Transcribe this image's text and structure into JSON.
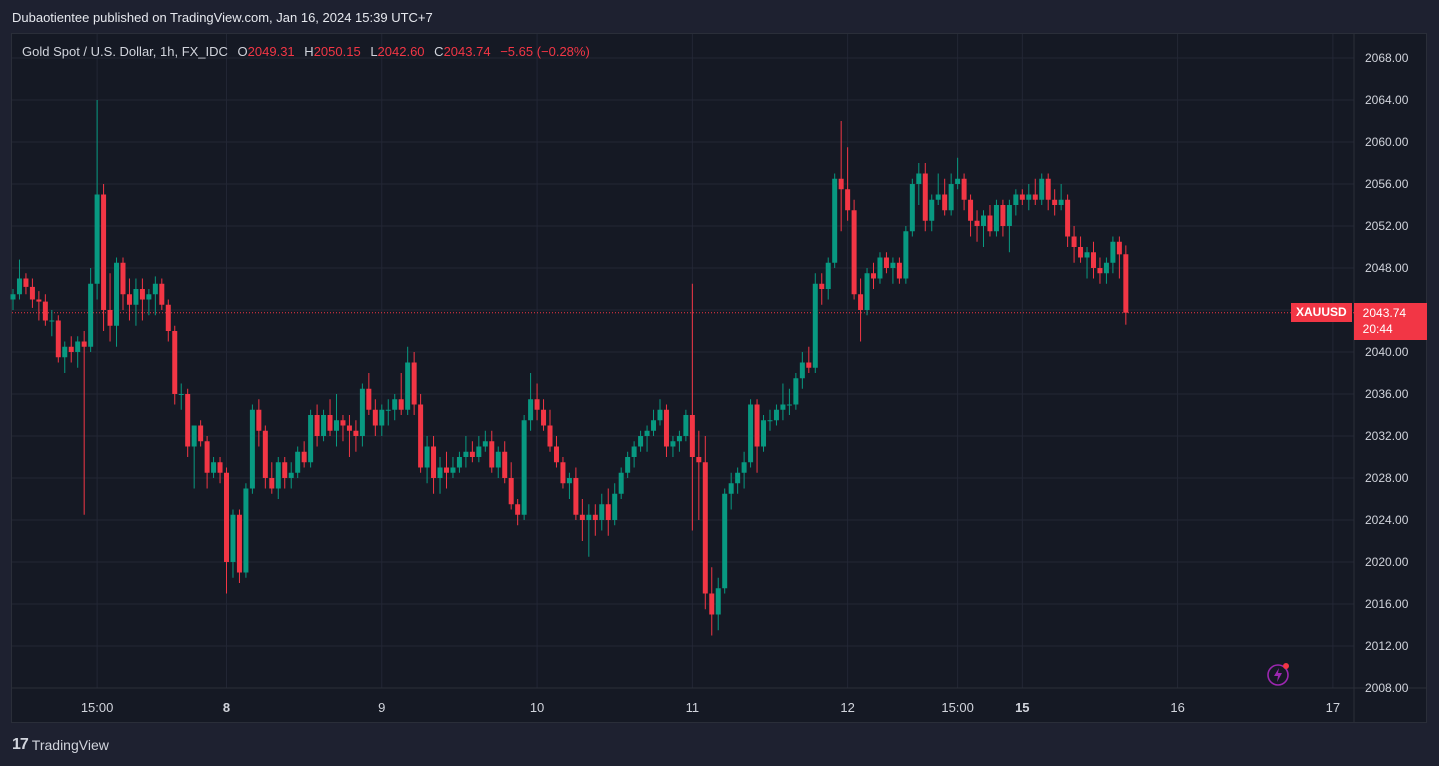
{
  "header": {
    "publisher_line": "Dubaotientee published on TradingView.com, Jan 16, 2024 15:39 UTC+7"
  },
  "legend": {
    "symbol_desc": "Gold Spot / U.S. Dollar, 1h, FX_IDC",
    "o_label": "O",
    "o_value": "2049.31",
    "h_label": "H",
    "h_value": "2050.15",
    "l_label": "L",
    "l_value": "2042.60",
    "c_label": "C",
    "c_value": "2043.74",
    "change": "−5.65 (−0.28%)"
  },
  "price_tag": {
    "symbol": "XAUUSD",
    "price": "2043.74",
    "countdown": "20:44"
  },
  "branding": {
    "logo_mark": "17",
    "name": "TradingView"
  },
  "colors": {
    "up": "#089981",
    "down": "#f23645",
    "background": "#151924",
    "grid": "#232735",
    "text": "#d1d4dc",
    "flash_icon": "#9c27b0"
  },
  "icons": {
    "bottom_right": "flash-icon"
  },
  "chart_data": {
    "type": "candlestick",
    "symbol": "XAUUSD",
    "interval": "1h",
    "last_price": 2043.74,
    "ylim": [
      2008,
      2070
    ],
    "y_ticks": [
      "2068.00",
      "2064.00",
      "2060.00",
      "2056.00",
      "2052.00",
      "2048.00",
      "2044.00",
      "2040.00",
      "2036.00",
      "2032.00",
      "2028.00",
      "2024.00",
      "2020.00",
      "2016.00",
      "2012.00",
      "2008.00"
    ],
    "x_ticks": [
      {
        "label": "15:00",
        "idx": 13,
        "bold": false
      },
      {
        "label": "8",
        "idx": 33,
        "bold": true
      },
      {
        "label": "9",
        "idx": 57,
        "bold": false
      },
      {
        "label": "10",
        "idx": 81,
        "bold": false
      },
      {
        "label": "11",
        "idx": 105,
        "bold": false
      },
      {
        "label": "12",
        "idx": 129,
        "bold": false
      },
      {
        "label": "15:00",
        "idx": 146,
        "bold": false
      },
      {
        "label": "15",
        "idx": 156,
        "bold": true
      },
      {
        "label": "16",
        "idx": 180,
        "bold": false
      },
      {
        "label": "17",
        "idx": 204,
        "bold": false
      }
    ],
    "candles": [
      [
        2045.0,
        2046.0,
        2044.0,
        2045.5
      ],
      [
        2045.5,
        2048.8,
        2045.0,
        2047.0
      ],
      [
        2047.0,
        2047.5,
        2045.5,
        2046.2
      ],
      [
        2046.2,
        2047.0,
        2044.2,
        2045.0
      ],
      [
        2045.0,
        2045.8,
        2043.0,
        2044.8
      ],
      [
        2044.8,
        2045.5,
        2042.5,
        2043.0
      ],
      [
        2043.0,
        2044.0,
        2041.5,
        2043.0
      ],
      [
        2043.0,
        2043.5,
        2039.0,
        2039.5
      ],
      [
        2039.5,
        2041.0,
        2038.0,
        2040.5
      ],
      [
        2040.5,
        2041.5,
        2039.0,
        2040.0
      ],
      [
        2040.0,
        2041.5,
        2038.5,
        2041.0
      ],
      [
        2041.0,
        2042.0,
        2024.5,
        2040.5
      ],
      [
        2040.5,
        2048.0,
        2040.0,
        2046.5
      ],
      [
        2046.5,
        2064.0,
        2045.0,
        2055.0
      ],
      [
        2055.0,
        2056.0,
        2042.0,
        2044.0
      ],
      [
        2044.0,
        2047.5,
        2041.0,
        2042.5
      ],
      [
        2042.5,
        2049.0,
        2040.5,
        2048.5
      ],
      [
        2048.5,
        2049.0,
        2044.0,
        2045.5
      ],
      [
        2045.5,
        2047.0,
        2043.0,
        2044.5
      ],
      [
        2044.5,
        2047.0,
        2042.5,
        2046.0
      ],
      [
        2046.0,
        2047.0,
        2043.0,
        2045.0
      ],
      [
        2045.0,
        2046.0,
        2043.5,
        2045.5
      ],
      [
        2045.5,
        2047.2,
        2043.5,
        2046.5
      ],
      [
        2046.5,
        2047.0,
        2044.0,
        2044.5
      ],
      [
        2044.5,
        2045.0,
        2041.0,
        2042.0
      ],
      [
        2042.0,
        2042.5,
        2035.0,
        2036.0
      ],
      [
        2036.0,
        2037.0,
        2034.5,
        2036.0
      ],
      [
        2036.0,
        2036.5,
        2030.0,
        2031.0
      ],
      [
        2031.0,
        2033.0,
        2027.0,
        2033.0
      ],
      [
        2033.0,
        2033.5,
        2031.0,
        2031.5
      ],
      [
        2031.5,
        2032.0,
        2027.0,
        2028.5
      ],
      [
        2028.5,
        2030.0,
        2028.0,
        2029.5
      ],
      [
        2029.5,
        2030.0,
        2027.5,
        2028.5
      ],
      [
        2028.5,
        2029.0,
        2017.0,
        2020.0
      ],
      [
        2020.0,
        2025.0,
        2018.5,
        2024.5
      ],
      [
        2024.5,
        2025.0,
        2018.0,
        2019.0
      ],
      [
        2019.0,
        2027.5,
        2018.5,
        2027.0
      ],
      [
        2027.0,
        2035.0,
        2026.5,
        2034.5
      ],
      [
        2034.5,
        2035.5,
        2031.0,
        2032.5
      ],
      [
        2032.5,
        2033.0,
        2027.0,
        2028.0
      ],
      [
        2028.0,
        2029.5,
        2026.5,
        2027.0
      ],
      [
        2027.0,
        2030.0,
        2026.0,
        2029.5
      ],
      [
        2029.5,
        2030.0,
        2027.0,
        2028.0
      ],
      [
        2028.0,
        2029.5,
        2027.0,
        2028.5
      ],
      [
        2028.5,
        2031.0,
        2028.0,
        2030.5
      ],
      [
        2030.5,
        2031.5,
        2029.0,
        2029.5
      ],
      [
        2029.5,
        2034.5,
        2029.0,
        2034.0
      ],
      [
        2034.0,
        2035.0,
        2031.0,
        2032.0
      ],
      [
        2032.0,
        2034.5,
        2031.5,
        2034.0
      ],
      [
        2034.0,
        2035.5,
        2032.0,
        2032.5
      ],
      [
        2032.5,
        2036.0,
        2031.0,
        2033.5
      ],
      [
        2033.5,
        2034.0,
        2031.5,
        2033.0
      ],
      [
        2033.0,
        2034.0,
        2030.0,
        2032.5
      ],
      [
        2032.5,
        2033.5,
        2030.5,
        2032.0
      ],
      [
        2032.0,
        2037.0,
        2031.0,
        2036.5
      ],
      [
        2036.5,
        2038.0,
        2034.0,
        2034.5
      ],
      [
        2034.5,
        2035.5,
        2032.0,
        2033.0
      ],
      [
        2033.0,
        2035.0,
        2032.0,
        2034.5
      ],
      [
        2034.5,
        2035.5,
        2033.0,
        2034.5
      ],
      [
        2034.5,
        2036.0,
        2033.5,
        2035.5
      ],
      [
        2035.5,
        2038.0,
        2034.0,
        2034.5
      ],
      [
        2034.5,
        2040.5,
        2034.0,
        2039.0
      ],
      [
        2039.0,
        2040.0,
        2034.0,
        2035.0
      ],
      [
        2035.0,
        2036.0,
        2028.5,
        2029.0
      ],
      [
        2029.0,
        2032.0,
        2027.5,
        2031.0
      ],
      [
        2031.0,
        2032.0,
        2026.5,
        2028.0
      ],
      [
        2028.0,
        2030.0,
        2026.5,
        2029.0
      ],
      [
        2029.0,
        2030.5,
        2027.0,
        2028.5
      ],
      [
        2028.5,
        2030.0,
        2028.0,
        2029.0
      ],
      [
        2029.0,
        2030.5,
        2028.5,
        2030.0
      ],
      [
        2030.0,
        2032.0,
        2029.0,
        2030.5
      ],
      [
        2030.5,
        2031.5,
        2029.5,
        2030.0
      ],
      [
        2030.0,
        2032.0,
        2029.5,
        2031.0
      ],
      [
        2031.0,
        2032.5,
        2030.5,
        2031.5
      ],
      [
        2031.5,
        2032.5,
        2028.5,
        2029.0
      ],
      [
        2029.0,
        2031.0,
        2028.0,
        2030.5
      ],
      [
        2030.5,
        2031.5,
        2027.5,
        2028.0
      ],
      [
        2028.0,
        2029.5,
        2025.0,
        2025.5
      ],
      [
        2025.5,
        2026.0,
        2023.5,
        2024.5
      ],
      [
        2024.5,
        2034.0,
        2024.0,
        2033.5
      ],
      [
        2033.5,
        2038.0,
        2032.5,
        2035.5
      ],
      [
        2035.5,
        2037.0,
        2033.5,
        2034.5
      ],
      [
        2034.5,
        2035.5,
        2032.5,
        2033.0
      ],
      [
        2033.0,
        2034.5,
        2030.5,
        2031.0
      ],
      [
        2031.0,
        2032.0,
        2029.0,
        2029.5
      ],
      [
        2029.5,
        2030.0,
        2027.0,
        2027.5
      ],
      [
        2027.5,
        2028.5,
        2026.0,
        2028.0
      ],
      [
        2028.0,
        2029.0,
        2024.0,
        2024.5
      ],
      [
        2024.5,
        2026.0,
        2022.0,
        2024.0
      ],
      [
        2024.0,
        2025.5,
        2020.5,
        2024.5
      ],
      [
        2024.5,
        2025.5,
        2022.5,
        2024.0
      ],
      [
        2024.0,
        2026.5,
        2023.0,
        2025.5
      ],
      [
        2025.5,
        2027.0,
        2022.5,
        2024.0
      ],
      [
        2024.0,
        2027.5,
        2023.5,
        2026.5
      ],
      [
        2026.5,
        2029.0,
        2026.0,
        2028.5
      ],
      [
        2028.5,
        2030.5,
        2028.0,
        2030.0
      ],
      [
        2030.0,
        2031.5,
        2029.0,
        2031.0
      ],
      [
        2031.0,
        2032.5,
        2030.5,
        2032.0
      ],
      [
        2032.0,
        2033.0,
        2030.5,
        2032.5
      ],
      [
        2032.5,
        2034.5,
        2032.0,
        2033.5
      ],
      [
        2033.5,
        2035.5,
        2033.0,
        2034.5
      ],
      [
        2034.5,
        2035.0,
        2030.0,
        2031.0
      ],
      [
        2031.0,
        2032.0,
        2030.0,
        2031.5
      ],
      [
        2031.5,
        2032.5,
        2030.5,
        2032.0
      ],
      [
        2032.0,
        2034.5,
        2031.5,
        2034.0
      ],
      [
        2034.0,
        2046.5,
        2023.0,
        2030.0
      ],
      [
        2030.0,
        2032.5,
        2024.0,
        2029.5
      ],
      [
        2029.5,
        2032.0,
        2015.5,
        2017.0
      ],
      [
        2017.0,
        2019.5,
        2013.0,
        2015.0
      ],
      [
        2015.0,
        2018.5,
        2013.5,
        2017.5
      ],
      [
        2017.5,
        2027.0,
        2017.0,
        2026.5
      ],
      [
        2026.5,
        2028.5,
        2025.0,
        2027.5
      ],
      [
        2027.5,
        2029.0,
        2026.5,
        2028.5
      ],
      [
        2028.5,
        2030.5,
        2027.0,
        2029.5
      ],
      [
        2029.5,
        2035.5,
        2029.0,
        2035.0
      ],
      [
        2035.0,
        2035.5,
        2028.5,
        2031.0
      ],
      [
        2031.0,
        2034.0,
        2030.5,
        2033.5
      ],
      [
        2033.5,
        2034.5,
        2032.5,
        2033.5
      ],
      [
        2033.5,
        2035.0,
        2033.0,
        2034.5
      ],
      [
        2034.5,
        2037.0,
        2033.5,
        2035.0
      ],
      [
        2035.0,
        2036.5,
        2034.0,
        2035.0
      ],
      [
        2035.0,
        2038.0,
        2034.5,
        2037.5
      ],
      [
        2037.5,
        2040.0,
        2036.5,
        2039.0
      ],
      [
        2039.0,
        2040.5,
        2038.0,
        2038.5
      ],
      [
        2038.5,
        2047.5,
        2038.0,
        2046.5
      ],
      [
        2046.5,
        2047.5,
        2044.5,
        2046.0
      ],
      [
        2046.0,
        2049.0,
        2045.0,
        2048.5
      ],
      [
        2048.5,
        2057.0,
        2048.0,
        2056.5
      ],
      [
        2056.5,
        2062.0,
        2051.5,
        2055.5
      ],
      [
        2055.5,
        2059.5,
        2052.5,
        2053.5
      ],
      [
        2053.5,
        2054.5,
        2045.0,
        2045.5
      ],
      [
        2045.5,
        2047.0,
        2041.0,
        2044.0
      ],
      [
        2044.0,
        2048.0,
        2043.5,
        2047.5
      ],
      [
        2047.5,
        2048.5,
        2046.0,
        2047.0
      ],
      [
        2047.0,
        2049.5,
        2046.5,
        2049.0
      ],
      [
        2049.0,
        2049.5,
        2047.5,
        2048.0
      ],
      [
        2048.0,
        2049.0,
        2046.5,
        2048.5
      ],
      [
        2048.5,
        2049.0,
        2046.5,
        2047.0
      ],
      [
        2047.0,
        2052.0,
        2046.5,
        2051.5
      ],
      [
        2051.5,
        2056.5,
        2051.0,
        2056.0
      ],
      [
        2056.0,
        2058.0,
        2054.0,
        2057.0
      ],
      [
        2057.0,
        2058.0,
        2051.5,
        2052.5
      ],
      [
        2052.5,
        2055.0,
        2051.5,
        2054.5
      ],
      [
        2054.5,
        2057.0,
        2054.0,
        2055.0
      ],
      [
        2055.0,
        2056.5,
        2053.0,
        2053.5
      ],
      [
        2053.5,
        2057.0,
        2053.0,
        2056.0
      ],
      [
        2056.0,
        2058.5,
        2055.5,
        2056.5
      ],
      [
        2056.5,
        2057.0,
        2053.5,
        2054.5
      ],
      [
        2054.5,
        2055.0,
        2051.0,
        2052.5
      ],
      [
        2052.5,
        2053.5,
        2050.5,
        2052.0
      ],
      [
        2052.0,
        2053.5,
        2050.0,
        2053.0
      ],
      [
        2053.0,
        2054.0,
        2051.0,
        2051.5
      ],
      [
        2051.5,
        2054.5,
        2051.0,
        2054.0
      ],
      [
        2054.0,
        2054.5,
        2051.0,
        2052.0
      ],
      [
        2052.0,
        2054.5,
        2049.5,
        2054.0
      ],
      [
        2054.0,
        2055.5,
        2053.0,
        2055.0
      ],
      [
        2055.0,
        2055.5,
        2054.0,
        2054.5
      ],
      [
        2054.5,
        2056.0,
        2053.5,
        2055.0
      ],
      [
        2055.0,
        2056.5,
        2054.0,
        2054.5
      ],
      [
        2054.5,
        2057.0,
        2054.0,
        2056.5
      ],
      [
        2056.5,
        2057.0,
        2053.5,
        2054.5
      ],
      [
        2054.5,
        2055.5,
        2053.0,
        2054.0
      ],
      [
        2054.0,
        2056.0,
        2053.5,
        2054.5
      ],
      [
        2054.5,
        2055.0,
        2050.0,
        2051.0
      ],
      [
        2051.0,
        2052.0,
        2048.5,
        2050.0
      ],
      [
        2050.0,
        2051.0,
        2048.5,
        2049.0
      ],
      [
        2049.0,
        2050.0,
        2047.0,
        2049.5
      ],
      [
        2049.5,
        2050.5,
        2047.0,
        2048.0
      ],
      [
        2048.0,
        2049.0,
        2046.5,
        2047.5
      ],
      [
        2047.5,
        2049.0,
        2046.5,
        2048.5
      ],
      [
        2048.5,
        2051.0,
        2047.5,
        2050.5
      ],
      [
        2050.5,
        2051.0,
        2047.0,
        2049.3
      ],
      [
        2049.31,
        2050.15,
        2042.6,
        2043.74
      ]
    ]
  }
}
